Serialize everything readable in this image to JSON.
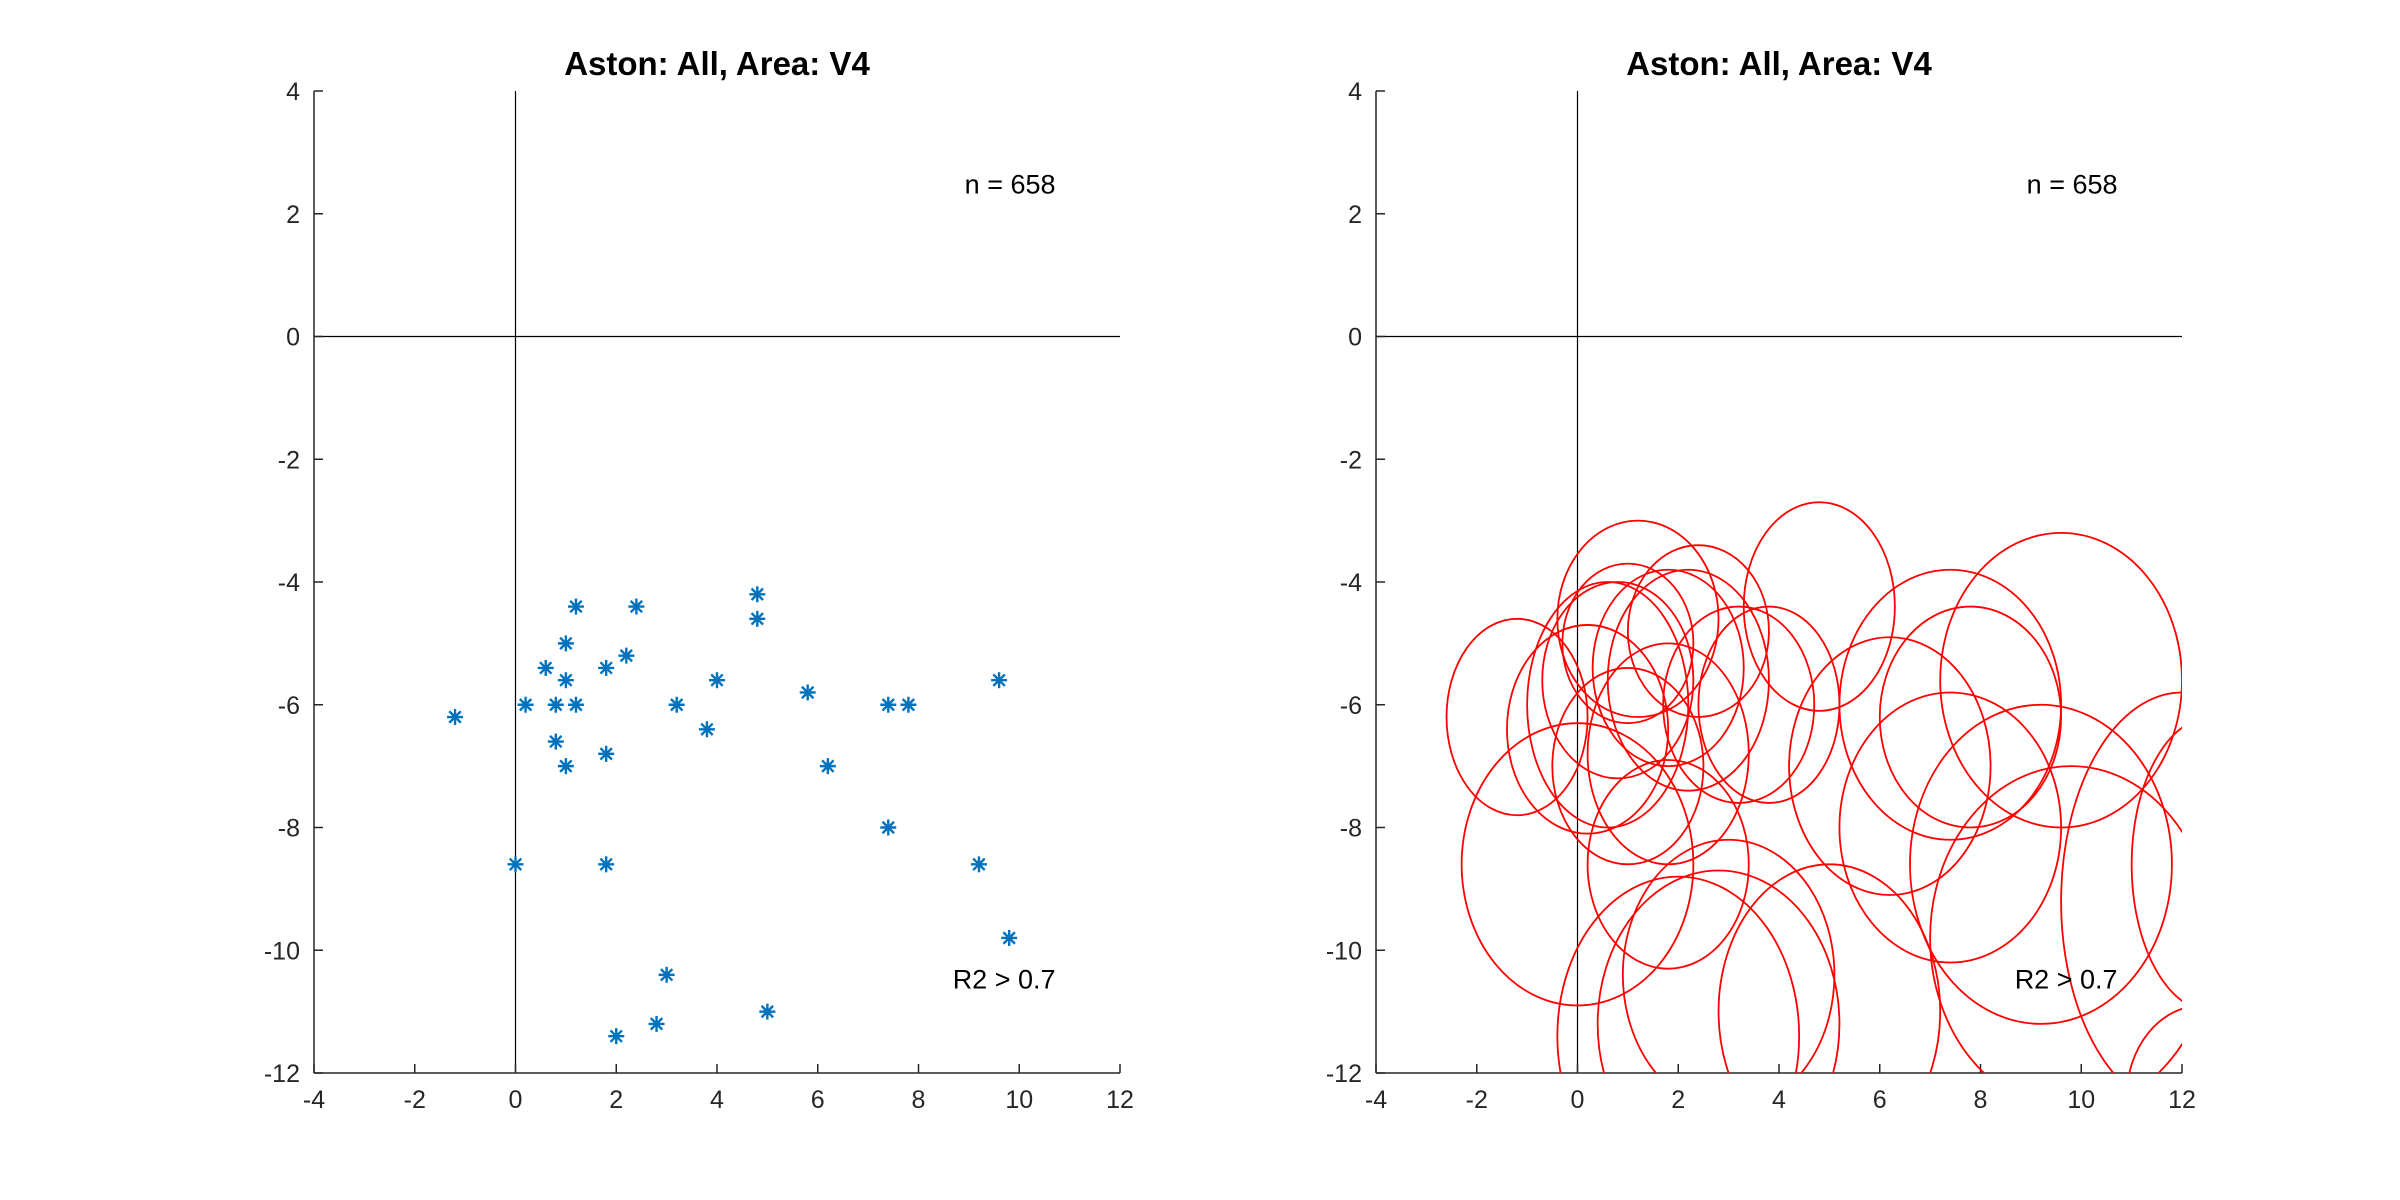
{
  "chart_data": [
    {
      "type": "scatter",
      "title": "Aston: All, Area: V4",
      "xlim": [
        -4,
        12
      ],
      "ylim": [
        -12,
        4
      ],
      "xticks": [
        -4,
        -2,
        0,
        2,
        4,
        6,
        8,
        10,
        12
      ],
      "yticks": [
        -12,
        -10,
        -8,
        -6,
        -4,
        -2,
        0,
        2,
        4
      ],
      "grid": false,
      "marker": "asterisk",
      "color": "#0072BD",
      "annotations": [
        "n = 658",
        "R2 > 0.7"
      ],
      "points": [
        [
          -1.2,
          -6.2
        ],
        [
          0.0,
          -8.6
        ],
        [
          0.2,
          -6.0
        ],
        [
          0.6,
          -5.4
        ],
        [
          0.8,
          -6.0
        ],
        [
          0.8,
          -6.6
        ],
        [
          1.0,
          -5.0
        ],
        [
          1.0,
          -5.6
        ],
        [
          1.0,
          -7.0
        ],
        [
          1.2,
          -4.4
        ],
        [
          1.2,
          -6.0
        ],
        [
          1.8,
          -5.4
        ],
        [
          1.8,
          -6.8
        ],
        [
          1.8,
          -8.6
        ],
        [
          2.0,
          -11.4
        ],
        [
          2.2,
          -5.2
        ],
        [
          2.4,
          -4.4
        ],
        [
          2.8,
          -11.2
        ],
        [
          3.0,
          -10.4
        ],
        [
          3.2,
          -6.0
        ],
        [
          3.8,
          -6.4
        ],
        [
          4.0,
          -5.6
        ],
        [
          4.8,
          -4.2
        ],
        [
          4.8,
          -4.6
        ],
        [
          5.0,
          -11.0
        ],
        [
          5.8,
          -5.8
        ],
        [
          6.2,
          -7.0
        ],
        [
          7.4,
          -6.0
        ],
        [
          7.4,
          -8.0
        ],
        [
          7.8,
          -6.0
        ],
        [
          9.2,
          -8.6
        ],
        [
          9.6,
          -5.6
        ],
        [
          9.8,
          -9.8
        ]
      ]
    },
    {
      "type": "ellipse",
      "title": "Aston: All, Area: V4",
      "xlim": [
        -4,
        12
      ],
      "ylim": [
        -12,
        4
      ],
      "xticks": [
        -4,
        -2,
        0,
        2,
        4,
        6,
        8,
        10,
        12
      ],
      "yticks": [
        -12,
        -10,
        -8,
        -6,
        -4,
        -2,
        0,
        2,
        4
      ],
      "grid": false,
      "color": "#FF0000",
      "annotations": [
        "n = 658",
        "R2 > 0.7"
      ],
      "ellipses": [
        {
          "cx": 1.2,
          "cy": -4.6,
          "rx": 1.6,
          "ry": 1.6
        },
        {
          "cx": 2.4,
          "cy": -4.8,
          "rx": 1.4,
          "ry": 1.4
        },
        {
          "cx": 4.8,
          "cy": -4.4,
          "rx": 1.5,
          "ry": 1.7
        },
        {
          "cx": 0.8,
          "cy": -5.6,
          "rx": 1.5,
          "ry": 1.6
        },
        {
          "cx": 1.0,
          "cy": -5.0,
          "rx": 1.3,
          "ry": 1.3
        },
        {
          "cx": 1.8,
          "cy": -5.4,
          "rx": 1.5,
          "ry": 1.6
        },
        {
          "cx": 3.2,
          "cy": -6.0,
          "rx": 1.5,
          "ry": 1.6
        },
        {
          "cx": 3.8,
          "cy": -6.0,
          "rx": 1.4,
          "ry": 1.6
        },
        {
          "cx": 2.2,
          "cy": -5.6,
          "rx": 1.6,
          "ry": 1.8
        },
        {
          "cx": -1.2,
          "cy": -6.2,
          "rx": 1.4,
          "ry": 1.6
        },
        {
          "cx": 0.6,
          "cy": -6.0,
          "rx": 1.6,
          "ry": 2.0
        },
        {
          "cx": 0.2,
          "cy": -6.4,
          "rx": 1.6,
          "ry": 1.7
        },
        {
          "cx": 1.8,
          "cy": -6.8,
          "rx": 1.6,
          "ry": 1.8
        },
        {
          "cx": 1.0,
          "cy": -7.0,
          "rx": 1.5,
          "ry": 1.6
        },
        {
          "cx": 0.0,
          "cy": -8.6,
          "rx": 2.3,
          "ry": 2.3
        },
        {
          "cx": 1.8,
          "cy": -8.6,
          "rx": 1.6,
          "ry": 1.7
        },
        {
          "cx": 6.2,
          "cy": -7.0,
          "rx": 2.0,
          "ry": 2.1
        },
        {
          "cx": 7.4,
          "cy": -6.0,
          "rx": 2.2,
          "ry": 2.2
        },
        {
          "cx": 9.6,
          "cy": -5.6,
          "rx": 2.4,
          "ry": 2.4
        },
        {
          "cx": 7.8,
          "cy": -6.2,
          "rx": 1.8,
          "ry": 1.8
        },
        {
          "cx": 7.4,
          "cy": -8.0,
          "rx": 2.2,
          "ry": 2.2
        },
        {
          "cx": 9.2,
          "cy": -8.6,
          "rx": 2.6,
          "ry": 2.6
        },
        {
          "cx": 9.8,
          "cy": -9.8,
          "rx": 2.8,
          "ry": 2.8
        },
        {
          "cx": 12.6,
          "cy": -8.6,
          "rx": 1.6,
          "ry": 2.4
        },
        {
          "cx": 12.0,
          "cy": -9.2,
          "rx": 2.4,
          "ry": 3.4
        },
        {
          "cx": 3.0,
          "cy": -10.4,
          "rx": 2.1,
          "ry": 2.2
        },
        {
          "cx": 2.0,
          "cy": -11.4,
          "rx": 2.4,
          "ry": 2.6
        },
        {
          "cx": 2.8,
          "cy": -11.2,
          "rx": 2.4,
          "ry": 2.5
        },
        {
          "cx": 5.0,
          "cy": -11.0,
          "rx": 2.2,
          "ry": 2.4
        },
        {
          "cx": 12.4,
          "cy": -12.4,
          "rx": 1.5,
          "ry": 1.5
        }
      ]
    }
  ]
}
